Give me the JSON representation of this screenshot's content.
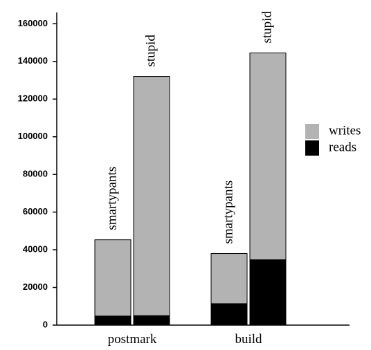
{
  "chart_data": {
    "type": "bar",
    "stacked": true,
    "categories": [
      "postmark",
      "build"
    ],
    "subcategories": [
      "smartypants",
      "stupid"
    ],
    "series": [
      {
        "name": "reads",
        "color": "#000000",
        "values": [
          [
            4800,
            5000
          ],
          [
            11400,
            34700
          ]
        ]
      },
      {
        "name": "writes",
        "color": "#b3b3b3",
        "values": [
          [
            40500,
            127000
          ],
          [
            26600,
            109800
          ]
        ]
      }
    ],
    "ylim": [
      0,
      166000
    ],
    "yticks": [
      0,
      20000,
      40000,
      60000,
      80000,
      100000,
      120000,
      140000,
      160000
    ]
  }
}
